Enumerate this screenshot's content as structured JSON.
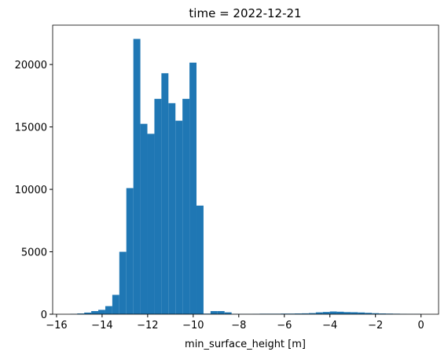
{
  "chart_data": {
    "type": "histogram",
    "title": "time = 2022-12-21",
    "x_label": "min_surface_height [m]",
    "bins": [
      -15.4,
      -15.092,
      -14.784,
      -14.476,
      -14.168,
      -13.86,
      -13.552,
      -13.244,
      -12.936,
      -12.628,
      -12.32,
      -12.012,
      -11.704,
      -11.396,
      -11.088,
      -10.78,
      -10.472,
      -10.164,
      -9.856,
      -9.548,
      -9.24,
      -8.932,
      -8.624,
      -8.316,
      -8.008,
      -7.7,
      -7.392,
      -7.084,
      -6.776,
      -6.468,
      -6.16,
      -5.852,
      -5.544,
      -5.236,
      -4.928,
      -4.62,
      -4.312,
      -4.004,
      -3.696,
      -3.388,
      -3.08,
      -2.772,
      -2.464,
      -2.156,
      -1.848,
      -1.54,
      -1.232,
      -0.924,
      -0.616,
      -0.308,
      0
    ],
    "values": [
      30,
      60,
      130,
      250,
      350,
      650,
      1550,
      5000,
      10100,
      22050,
      15250,
      14450,
      17250,
      19300,
      16900,
      15500,
      17250,
      20150,
      8700,
      50,
      250,
      250,
      150,
      30,
      20,
      20,
      30,
      40,
      40,
      40,
      50,
      50,
      60,
      70,
      90,
      150,
      180,
      220,
      200,
      170,
      160,
      140,
      110,
      80,
      60,
      50,
      40,
      30,
      20,
      20
    ],
    "color": "#1f77b4",
    "xlim": [
      -16.17,
      0.77
    ],
    "xticks": [
      {
        "value": -16,
        "label": "−16"
      },
      {
        "value": -14,
        "label": "−14"
      },
      {
        "value": -12,
        "label": "−12"
      },
      {
        "value": -10,
        "label": "−10"
      },
      {
        "value": -8,
        "label": "−8"
      },
      {
        "value": -6,
        "label": "−6"
      },
      {
        "value": -4,
        "label": "−4"
      },
      {
        "value": -2,
        "label": "−2"
      },
      0
    ],
    "ylim": [
      0,
      23153
    ],
    "yticks": [
      0,
      5000,
      10000,
      15000,
      20000
    ]
  }
}
